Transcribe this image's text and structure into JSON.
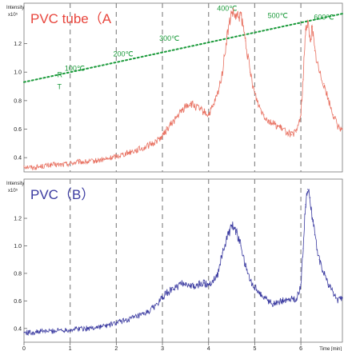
{
  "chart_data": [
    {
      "type": "line",
      "title": "PVC tube（A",
      "title_color": "#e8453c",
      "line_color": "#e87060",
      "xlabel": "Time [min]",
      "ylabel": "Intensity",
      "y_exponent": "x10⁵",
      "xlim": [
        0,
        6.9
      ],
      "ylim": [
        0.3,
        1.45
      ],
      "yticks": [
        "0.4",
        "0.6",
        "0.8",
        "1.0",
        "1.2"
      ],
      "x": [
        0.0,
        0.2,
        0.4,
        0.6,
        0.8,
        1.0,
        1.2,
        1.4,
        1.6,
        1.8,
        2.0,
        2.2,
        2.4,
        2.6,
        2.8,
        3.0,
        3.1,
        3.2,
        3.3,
        3.4,
        3.5,
        3.6,
        3.7,
        3.8,
        3.9,
        4.0,
        4.1,
        4.2,
        4.3,
        4.4,
        4.5,
        4.6,
        4.7,
        4.8,
        4.9,
        5.0,
        5.1,
        5.2,
        5.3,
        5.4,
        5.5,
        5.6,
        5.7,
        5.8,
        5.9,
        6.0,
        6.05,
        6.1,
        6.15,
        6.2,
        6.25,
        6.3,
        6.4,
        6.5,
        6.6,
        6.7,
        6.8,
        6.9
      ],
      "y": [
        0.34,
        0.33,
        0.34,
        0.35,
        0.35,
        0.36,
        0.37,
        0.37,
        0.38,
        0.39,
        0.41,
        0.43,
        0.45,
        0.47,
        0.5,
        0.55,
        0.6,
        0.64,
        0.68,
        0.72,
        0.76,
        0.78,
        0.76,
        0.74,
        0.72,
        0.7,
        0.76,
        0.85,
        1.0,
        1.25,
        1.42,
        1.38,
        1.4,
        1.22,
        1.0,
        0.85,
        0.76,
        0.7,
        0.66,
        0.64,
        0.62,
        0.6,
        0.58,
        0.56,
        0.58,
        0.7,
        0.95,
        1.3,
        1.35,
        1.22,
        1.32,
        1.15,
        1.0,
        0.92,
        0.8,
        0.7,
        0.62,
        0.6
      ],
      "temperature_program": {
        "color": "#1a9a3a",
        "style": "dotted",
        "start_labels": [
          "R",
          "T"
        ],
        "line_y_at_x0": 0.93,
        "line_y_at_xmax": 1.41,
        "labels": [
          {
            "x": 1.1,
            "y": 1.01,
            "text": "100℃"
          },
          {
            "x": 2.15,
            "y": 1.11,
            "text": "200℃"
          },
          {
            "x": 3.15,
            "y": 1.22,
            "text": "300℃"
          },
          {
            "x": 4.4,
            "y": 1.43,
            "text": "400℃"
          },
          {
            "x": 5.5,
            "y": 1.38,
            "text": "500℃"
          },
          {
            "x": 6.5,
            "y": 1.37,
            "text": "600℃"
          }
        ]
      }
    },
    {
      "type": "line",
      "title": "PVC（B）",
      "title_color": "#3a3aa0",
      "line_color": "#3a3aa0",
      "xlabel": "Time [min]",
      "ylabel": "Intensity",
      "y_exponent": "x10⁵",
      "xlim": [
        0,
        6.9
      ],
      "ylim": [
        0.3,
        1.45
      ],
      "yticks": [
        "0.4",
        "0.6",
        "0.8",
        "1.0",
        "1.2"
      ],
      "x": [
        0.0,
        0.2,
        0.4,
        0.6,
        0.8,
        1.0,
        1.2,
        1.4,
        1.6,
        1.8,
        2.0,
        2.2,
        2.4,
        2.6,
        2.8,
        3.0,
        3.1,
        3.2,
        3.3,
        3.4,
        3.5,
        3.6,
        3.7,
        3.8,
        3.9,
        4.0,
        4.1,
        4.2,
        4.3,
        4.4,
        4.5,
        4.6,
        4.7,
        4.8,
        4.9,
        5.0,
        5.1,
        5.2,
        5.3,
        5.4,
        5.5,
        5.6,
        5.7,
        5.8,
        5.9,
        6.0,
        6.05,
        6.1,
        6.15,
        6.2,
        6.25,
        6.3,
        6.4,
        6.5,
        6.6,
        6.7,
        6.8,
        6.9
      ],
      "y": [
        0.37,
        0.37,
        0.38,
        0.38,
        0.39,
        0.39,
        0.4,
        0.4,
        0.41,
        0.42,
        0.44,
        0.46,
        0.48,
        0.5,
        0.55,
        0.62,
        0.66,
        0.68,
        0.7,
        0.72,
        0.73,
        0.71,
        0.7,
        0.72,
        0.73,
        0.72,
        0.75,
        0.8,
        0.95,
        1.05,
        1.15,
        1.1,
        1.0,
        0.85,
        0.75,
        0.7,
        0.66,
        0.63,
        0.6,
        0.58,
        0.59,
        0.6,
        0.61,
        0.62,
        0.6,
        0.72,
        0.98,
        1.3,
        1.41,
        1.35,
        1.2,
        1.08,
        0.9,
        0.8,
        0.72,
        0.66,
        0.6,
        0.62
      ]
    }
  ],
  "x_axis": {
    "ticks": [
      "0",
      "1",
      "2",
      "3",
      "4",
      "5",
      "6"
    ],
    "label": "Time [min]"
  }
}
